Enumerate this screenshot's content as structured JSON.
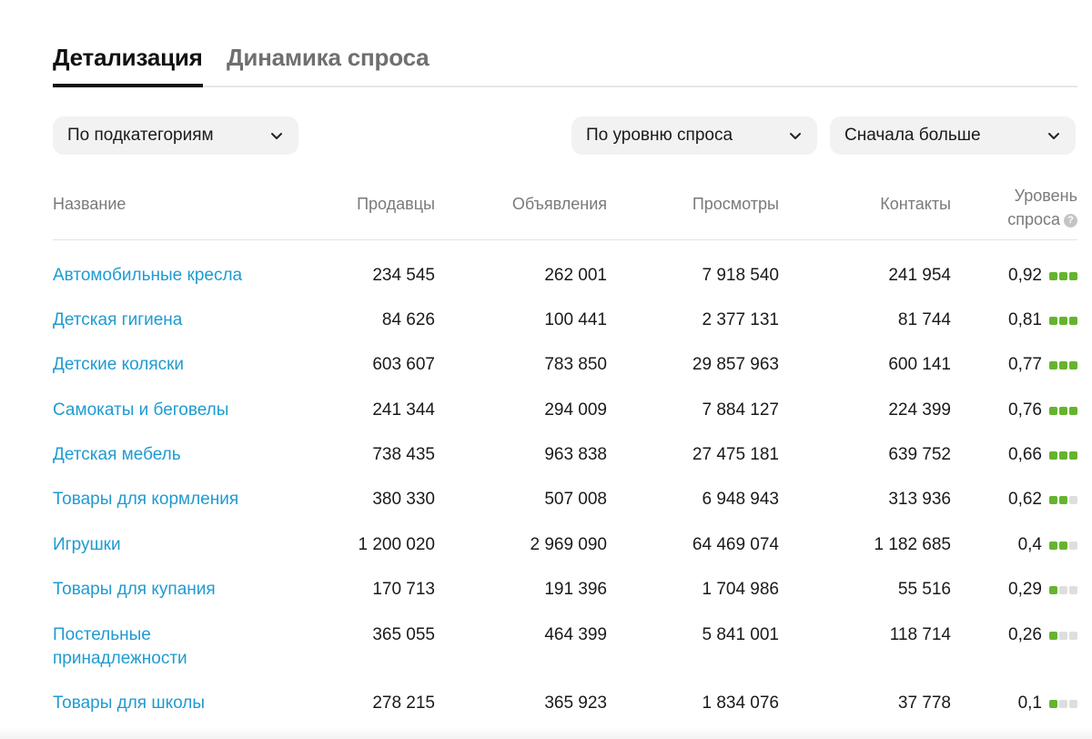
{
  "tabs": [
    {
      "label": "Детализация",
      "active": true
    },
    {
      "label": "Динамика спроса",
      "active": false
    }
  ],
  "filters": {
    "subcategory": "По подкатегориям",
    "demand": "По уровню спроса",
    "sort": "Сначала больше"
  },
  "columns": {
    "name": "Название",
    "sellers": "Продавцы",
    "ads": "Объявления",
    "views": "Просмотры",
    "contacts": "Контакты",
    "level_line1": "Уровень",
    "level_line2": "спроса"
  },
  "rows": [
    {
      "name": "Автомобильные кресла",
      "sellers": "234 545",
      "ads": "262 001",
      "views": "7 918 540",
      "contacts": "241 954",
      "level": "0,92",
      "bars": 3
    },
    {
      "name": "Детская гигиена",
      "sellers": "84 626",
      "ads": "100 441",
      "views": "2 377 131",
      "contacts": "81 744",
      "level": "0,81",
      "bars": 3
    },
    {
      "name": "Детские коляски",
      "sellers": "603 607",
      "ads": "783 850",
      "views": "29 857 963",
      "contacts": "600 141",
      "level": "0,77",
      "bars": 3
    },
    {
      "name": "Самокаты и беговелы",
      "sellers": "241 344",
      "ads": "294 009",
      "views": "7 884 127",
      "contacts": "224 399",
      "level": "0,76",
      "bars": 3
    },
    {
      "name": "Детская мебель",
      "sellers": "738 435",
      "ads": "963 838",
      "views": "27 475 181",
      "contacts": "639 752",
      "level": "0,66",
      "bars": 3
    },
    {
      "name": "Товары для кормления",
      "sellers": "380 330",
      "ads": "507 008",
      "views": "6 948 943",
      "contacts": "313 936",
      "level": "0,62",
      "bars": 2
    },
    {
      "name": "Игрушки",
      "sellers": "1 200 020",
      "ads": "2 969 090",
      "views": "64 469 074",
      "contacts": "1 182 685",
      "level": "0,4",
      "bars": 2
    },
    {
      "name": "Товары для купания",
      "sellers": "170 713",
      "ads": "191 396",
      "views": "1 704 986",
      "contacts": "55 516",
      "level": "0,29",
      "bars": 1
    },
    {
      "name": "Постельные принадлежности",
      "sellers": "365 055",
      "ads": "464 399",
      "views": "5 841 001",
      "contacts": "118 714",
      "level": "0,26",
      "bars": 1
    },
    {
      "name": "Товары для школы",
      "sellers": "278 215",
      "ads": "365 923",
      "views": "1 834 076",
      "contacts": "37 778",
      "level": "0,1",
      "bars": 1
    }
  ],
  "colors": {
    "link": "#1f9bd1",
    "bar_on": "#66b42e",
    "bar_off": "#dedede"
  }
}
